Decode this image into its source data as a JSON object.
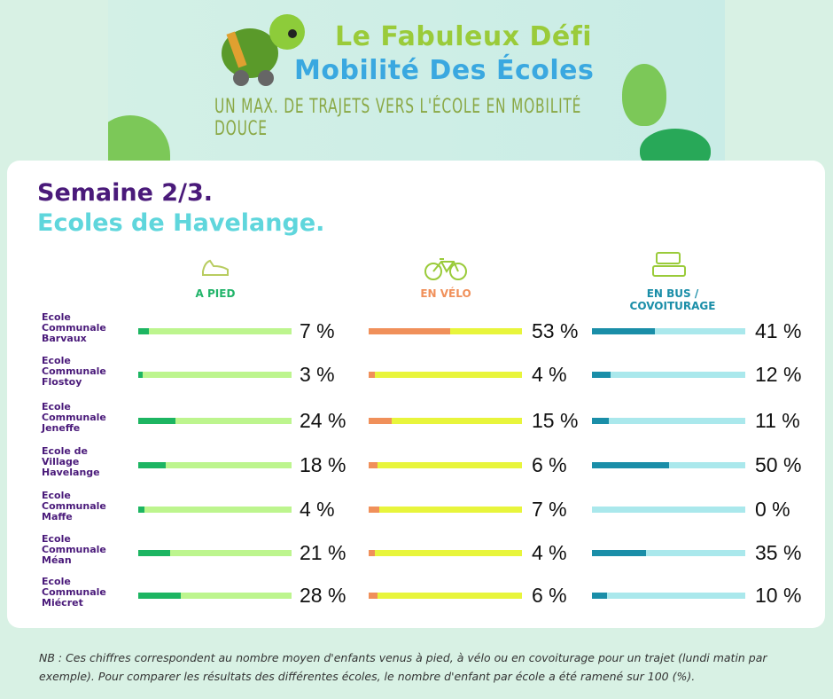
{
  "banner": {
    "title_line1": "Le Fabuleux Défi",
    "title_line2": "Mobilité Des Écoles",
    "subtitle": "Un max. de trajets vers l'école en mobilité douce"
  },
  "heading": {
    "week": "Semaine 2/3.",
    "schools": "Ecoles de Havelange."
  },
  "chart_data": {
    "type": "bar",
    "categories": [
      "Ecole Communale Barvaux",
      "Ecole Communale Flostoy",
      "Ecole Communale Jeneffe",
      "Ecole de Village Havelange",
      "Ecole Communale Maffe",
      "Ecole Communale Méan",
      "Ecole Communale Miécret"
    ],
    "series": [
      {
        "name": "A PIED",
        "icon": "shoe-icon",
        "values": [
          7,
          3,
          24,
          18,
          4,
          21,
          28
        ],
        "color": "#1db562",
        "track": "#bdf58e",
        "head_color": "#22b46a"
      },
      {
        "name": "EN VÉLO",
        "icon": "bicycle-icon",
        "values": [
          53,
          4,
          15,
          6,
          7,
          4,
          6
        ],
        "color": "#f0905a",
        "track": "#e8f53c",
        "head_color": "#f0905a"
      },
      {
        "name": "EN BUS / COVOITURAGE",
        "icon": "bus-icon",
        "values": [
          41,
          12,
          11,
          50,
          0,
          35,
          10
        ],
        "color": "#1a8ea8",
        "track": "#aae8ec",
        "head_color": "#1a8ea8"
      }
    ],
    "unit": "%",
    "ylim": [
      0,
      100
    ]
  },
  "school_lines": [
    [
      "Ecole",
      "Communale",
      "Barvaux"
    ],
    [
      "Ecole",
      "Communale",
      "Flostoy"
    ],
    [
      "Ecole",
      "Communale",
      "Jeneffe"
    ],
    [
      "Ecole de",
      "Village",
      "Havelange"
    ],
    [
      "Ecole",
      "Communale",
      "Maffe"
    ],
    [
      "Ecole",
      "Communale",
      "Méan"
    ],
    [
      "Ecole",
      "Communale",
      "Miécret"
    ]
  ],
  "column_heads": [
    "A PIED",
    "EN VÉLO",
    "EN BUS / COVOITURAGE"
  ],
  "note": "NB : Ces chiffres correspondent au nombre moyen d'enfants venus à pied, à vélo ou en covoiturage pour un trajet (lundi matin par exemple). Pour comparer les résultats des différentes écoles, le nombre d'enfant par école a été ramené sur 100 (%)."
}
